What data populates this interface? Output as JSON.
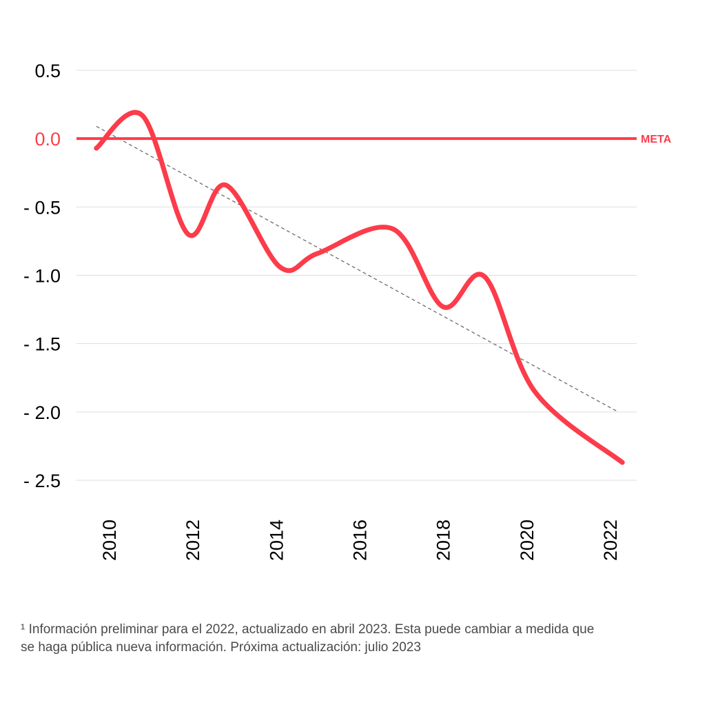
{
  "chart_data": {
    "type": "line",
    "x": [
      2009.7,
      2010.8,
      2011.9,
      2012.8,
      2014.1,
      2015.0,
      2016.8,
      2018.0,
      2019.0,
      2020.2,
      2022.3
    ],
    "series": [
      {
        "values": [
          -0.07,
          0.17,
          -0.7,
          -0.34,
          -0.94,
          -0.84,
          -0.66,
          -1.23,
          -1.01,
          -1.85,
          -2.37
        ]
      }
    ],
    "trend": {
      "x": [
        2009.7,
        2022.2
      ],
      "y": [
        0.09,
        -2.0
      ]
    },
    "target": {
      "value": 0.0,
      "label": "META"
    },
    "xticks": [
      2010,
      2012,
      2014,
      2016,
      2018,
      2020,
      2022
    ],
    "xtick_labels": [
      "2010",
      "2012",
      "2014",
      "2016",
      "2018",
      "2020",
      "2022"
    ],
    "yticks": [
      0.5,
      0.0,
      -0.5,
      -1.0,
      -1.5,
      -2.0,
      -2.5
    ],
    "ytick_labels": [
      "0.5",
      "0.0",
      "- 0.5",
      "- 1.0",
      "- 1.5",
      "- 2.0",
      "- 2.5"
    ],
    "ylim": [
      -2.5,
      0.5
    ],
    "xlim": [
      2009.5,
      2022.6
    ],
    "grid": true,
    "colors": {
      "series": "#fc3c4a",
      "trend": "#6b6b6b",
      "grid": "#dddddd",
      "ticks": "#000000"
    }
  },
  "footnote": {
    "line1": "¹ Información preliminar para el 2022, actualizado en abril 2023. Esta puede cambiar a medida que",
    "line2": "se haga pública nueva información. Próxima actualización: julio 2023"
  }
}
